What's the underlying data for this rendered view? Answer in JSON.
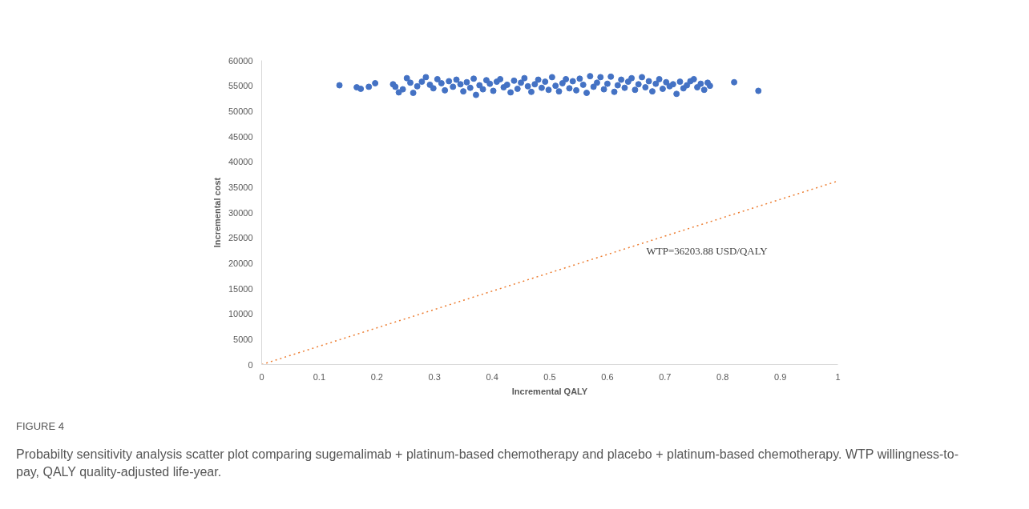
{
  "chart_data": {
    "type": "scatter",
    "xlabel": "Incremental QALY",
    "ylabel": "Incremental cost",
    "xlim": [
      0,
      1
    ],
    "xticks": [
      0,
      0.1,
      0.2,
      0.3,
      0.4,
      0.5,
      0.6,
      0.7,
      0.8,
      0.9,
      1
    ],
    "ylim": [
      0,
      60000
    ],
    "yticks": [
      0,
      5000,
      10000,
      15000,
      20000,
      25000,
      30000,
      35000,
      40000,
      45000,
      50000,
      55000,
      60000
    ],
    "grid": false,
    "series": [
      {
        "marker": "circle",
        "color": "#4472c4",
        "x": [
          0.135,
          0.165,
          0.172,
          0.186,
          0.197,
          0.228,
          0.232,
          0.238,
          0.245,
          0.252,
          0.258,
          0.263,
          0.27,
          0.278,
          0.285,
          0.292,
          0.298,
          0.305,
          0.312,
          0.318,
          0.325,
          0.332,
          0.338,
          0.345,
          0.35,
          0.356,
          0.362,
          0.368,
          0.372,
          0.378,
          0.384,
          0.39,
          0.396,
          0.402,
          0.408,
          0.414,
          0.42,
          0.426,
          0.432,
          0.438,
          0.444,
          0.45,
          0.456,
          0.462,
          0.468,
          0.474,
          0.48,
          0.486,
          0.492,
          0.498,
          0.504,
          0.51,
          0.516,
          0.522,
          0.528,
          0.534,
          0.54,
          0.546,
          0.552,
          0.558,
          0.564,
          0.57,
          0.576,
          0.582,
          0.588,
          0.594,
          0.6,
          0.606,
          0.612,
          0.618,
          0.624,
          0.63,
          0.636,
          0.642,
          0.648,
          0.654,
          0.66,
          0.666,
          0.672,
          0.678,
          0.684,
          0.69,
          0.696,
          0.702,
          0.708,
          0.714,
          0.72,
          0.726,
          0.732,
          0.738,
          0.744,
          0.75,
          0.756,
          0.762,
          0.768,
          0.774,
          0.778,
          0.82,
          0.862
        ],
        "values": [
          55100,
          54700,
          54400,
          54800,
          55500,
          55300,
          54800,
          53700,
          54300,
          56500,
          55600,
          53600,
          54900,
          55800,
          56700,
          55200,
          54500,
          56300,
          55500,
          54100,
          55900,
          54800,
          56200,
          55300,
          53900,
          55700,
          54600,
          56400,
          53200,
          55100,
          54300,
          56100,
          55400,
          54000,
          55800,
          56300,
          54700,
          55200,
          53700,
          56000,
          54400,
          55600,
          56500,
          54900,
          53800,
          55300,
          56200,
          54600,
          55800,
          54200,
          56700,
          55000,
          53900,
          55500,
          56300,
          54500,
          55900,
          54100,
          56400,
          55200,
          53600,
          56900,
          54800,
          55600,
          56700,
          54300,
          55400,
          56800,
          53800,
          55100,
          56200,
          54600,
          55800,
          56500,
          54200,
          55300,
          56700,
          54700,
          55900,
          53900,
          55400,
          56300,
          54400,
          55700,
          54900,
          55300,
          53400,
          55800,
          54500,
          55100,
          55900,
          56300,
          54700,
          55400,
          54200,
          55600,
          55000,
          55700,
          54000
        ]
      },
      {
        "type": "line",
        "color": "#ed7d31",
        "line_style": "dotted",
        "x": [
          0,
          1
        ],
        "values": [
          0,
          36203.88
        ]
      }
    ],
    "annotations": [
      "WTP=36203.88  USD/QALY",
      "FIGURE 4",
      "Probabilty sensitivity analysis scatter plot comparing sugemalimab + platinum-based chemotherapy and placebo + platinum-based chemotherapy. WTP willingness-to-pay, QALY quality-adjusted life-year."
    ]
  }
}
